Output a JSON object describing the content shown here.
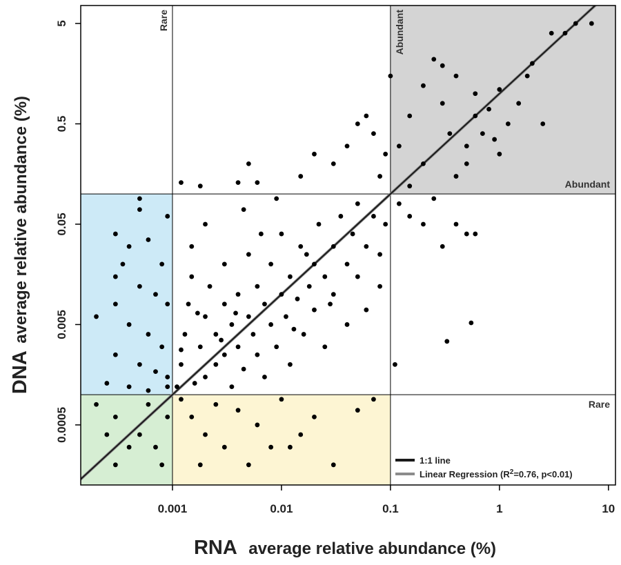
{
  "chart_data": {
    "type": "scatter",
    "x_label": {
      "bold": "RNA",
      "rest": "average relative abundance (%)"
    },
    "y_label": {
      "bold": "DNA",
      "rest": "average relative abundance (%)"
    },
    "log_x": true,
    "log_y": true,
    "xlim": [
      0.000144,
      11.6
    ],
    "ylim": [
      0.000126,
      7.55
    ],
    "xticks": [
      0.001,
      0.01,
      0.1,
      1,
      10
    ],
    "yticks": [
      0.0005,
      0.005,
      0.05,
      0.5,
      5
    ],
    "zones": [
      {
        "label": "Rare",
        "value": 0.001
      },
      {
        "label": "Abundant",
        "value": 0.1
      }
    ],
    "zone_colors": [
      "#cdeaf7",
      "#d6eed3",
      "#fdf5d3",
      "#d4d4d4"
    ],
    "legend": [
      {
        "label": "1:1 line",
        "color": "#1a1a1a"
      },
      {
        "label_parts": [
          "Linear Regression (R",
          "2",
          "=0.76, p<0.01)"
        ],
        "color": "#8c8c8c"
      }
    ],
    "series": [
      {
        "color": "#000000",
        "x": [
          0.0005,
          0.0005,
          0.0009,
          0.0003,
          0.0004,
          0.0006,
          0.0008,
          0.0003,
          0.0005,
          0.0007,
          0.0009,
          0.0002,
          0.0004,
          0.0006,
          0.0008,
          0.0003,
          0.0005,
          0.0007,
          0.0009,
          0.00025,
          0.0004,
          0.0006,
          0.0009,
          0.0003,
          0.00035,
          0.0002,
          0.0003,
          0.0005,
          0.0007,
          0.0009,
          0.0004,
          0.0006,
          0.0008,
          0.0003,
          0.00025,
          0.0012,
          0.0015,
          0.002,
          0.003,
          0.004,
          0.006,
          0.008,
          0.01,
          0.015,
          0.02,
          0.03,
          0.05,
          0.07,
          0.0025,
          0.005,
          0.012,
          0.0018,
          0.0011,
          0.0012,
          0.0013,
          0.0014,
          0.0015,
          0.0016,
          0.0018,
          0.002,
          0.002,
          0.0022,
          0.0025,
          0.0025,
          0.003,
          0.003,
          0.003,
          0.0035,
          0.0035,
          0.004,
          0.004,
          0.0045,
          0.005,
          0.005,
          0.0055,
          0.006,
          0.006,
          0.007,
          0.007,
          0.008,
          0.008,
          0.009,
          0.01,
          0.01,
          0.011,
          0.012,
          0.012,
          0.014,
          0.015,
          0.016,
          0.018,
          0.02,
          0.02,
          0.022,
          0.025,
          0.025,
          0.03,
          0.03,
          0.035,
          0.04,
          0.04,
          0.045,
          0.05,
          0.05,
          0.06,
          0.07,
          0.08,
          0.09,
          0.0015,
          0.002,
          0.0045,
          0.0065,
          0.009,
          0.0017,
          0.0028,
          0.0038,
          0.013,
          0.017,
          0.028,
          0.06,
          0.08,
          0.0012,
          0.0012,
          0.0018,
          0.004,
          0.006,
          0.005,
          0.02,
          0.03,
          0.04,
          0.05,
          0.06,
          0.07,
          0.08,
          0.09,
          0.015,
          0.12,
          0.15,
          0.2,
          0.3,
          0.4,
          0.5,
          0.6,
          0.55,
          0.33,
          0.11,
          0.25,
          0.1,
          0.12,
          0.15,
          0.2,
          0.2,
          0.25,
          0.3,
          0.35,
          0.4,
          0.5,
          0.6,
          0.7,
          0.8,
          1,
          1.2,
          1.5,
          2,
          2.5,
          3,
          4,
          5,
          7,
          0.5,
          1,
          0.4,
          0.3,
          0.15,
          0.6,
          1.8,
          0.9
        ],
        "values": [
          0.09,
          0.07,
          0.06,
          0.04,
          0.03,
          0.035,
          0.02,
          0.015,
          0.012,
          0.01,
          0.008,
          0.006,
          0.005,
          0.004,
          0.003,
          0.0025,
          0.002,
          0.0017,
          0.0015,
          0.0013,
          0.0012,
          0.0011,
          0.0012,
          0.008,
          0.02,
          0.0008,
          0.0006,
          0.0004,
          0.0003,
          0.0006,
          0.0003,
          0.0008,
          0.0002,
          0.0002,
          0.0004,
          0.0009,
          0.0006,
          0.0004,
          0.0003,
          0.0007,
          0.0005,
          0.0003,
          0.0009,
          0.0004,
          0.0006,
          0.0002,
          0.0007,
          0.0009,
          0.0008,
          0.0002,
          0.0003,
          0.0002,
          0.0012,
          0.002,
          0.004,
          0.008,
          0.015,
          0.0013,
          0.003,
          0.006,
          0.0015,
          0.012,
          0.002,
          0.004,
          0.0025,
          0.008,
          0.02,
          0.0012,
          0.005,
          0.003,
          0.01,
          0.0018,
          0.006,
          0.025,
          0.004,
          0.0025,
          0.012,
          0.008,
          0.0015,
          0.005,
          0.02,
          0.003,
          0.01,
          0.04,
          0.006,
          0.015,
          0.002,
          0.009,
          0.03,
          0.004,
          0.012,
          0.02,
          0.007,
          0.05,
          0.015,
          0.003,
          0.03,
          0.01,
          0.06,
          0.02,
          0.005,
          0.04,
          0.08,
          0.015,
          0.03,
          0.06,
          0.012,
          0.05,
          0.03,
          0.05,
          0.07,
          0.04,
          0.09,
          0.0065,
          0.0035,
          0.0065,
          0.0045,
          0.025,
          0.008,
          0.007,
          0.025,
          0.0028,
          0.13,
          0.12,
          0.13,
          0.13,
          0.2,
          0.25,
          0.2,
          0.3,
          0.5,
          0.6,
          0.4,
          0.15,
          0.25,
          0.15,
          0.08,
          0.06,
          0.05,
          0.03,
          0.05,
          0.04,
          0.04,
          0.0052,
          0.0034,
          0.002,
          0.09,
          1.5,
          0.3,
          0.6,
          1.2,
          0.2,
          2.2,
          0.8,
          0.4,
          1.5,
          0.3,
          1,
          0.4,
          0.7,
          1.1,
          0.5,
          0.8,
          2,
          0.5,
          4,
          4,
          5,
          5,
          0.2,
          0.25,
          0.15,
          1.9,
          0.12,
          0.6,
          1.5,
          0.35
        ]
      }
    ]
  }
}
